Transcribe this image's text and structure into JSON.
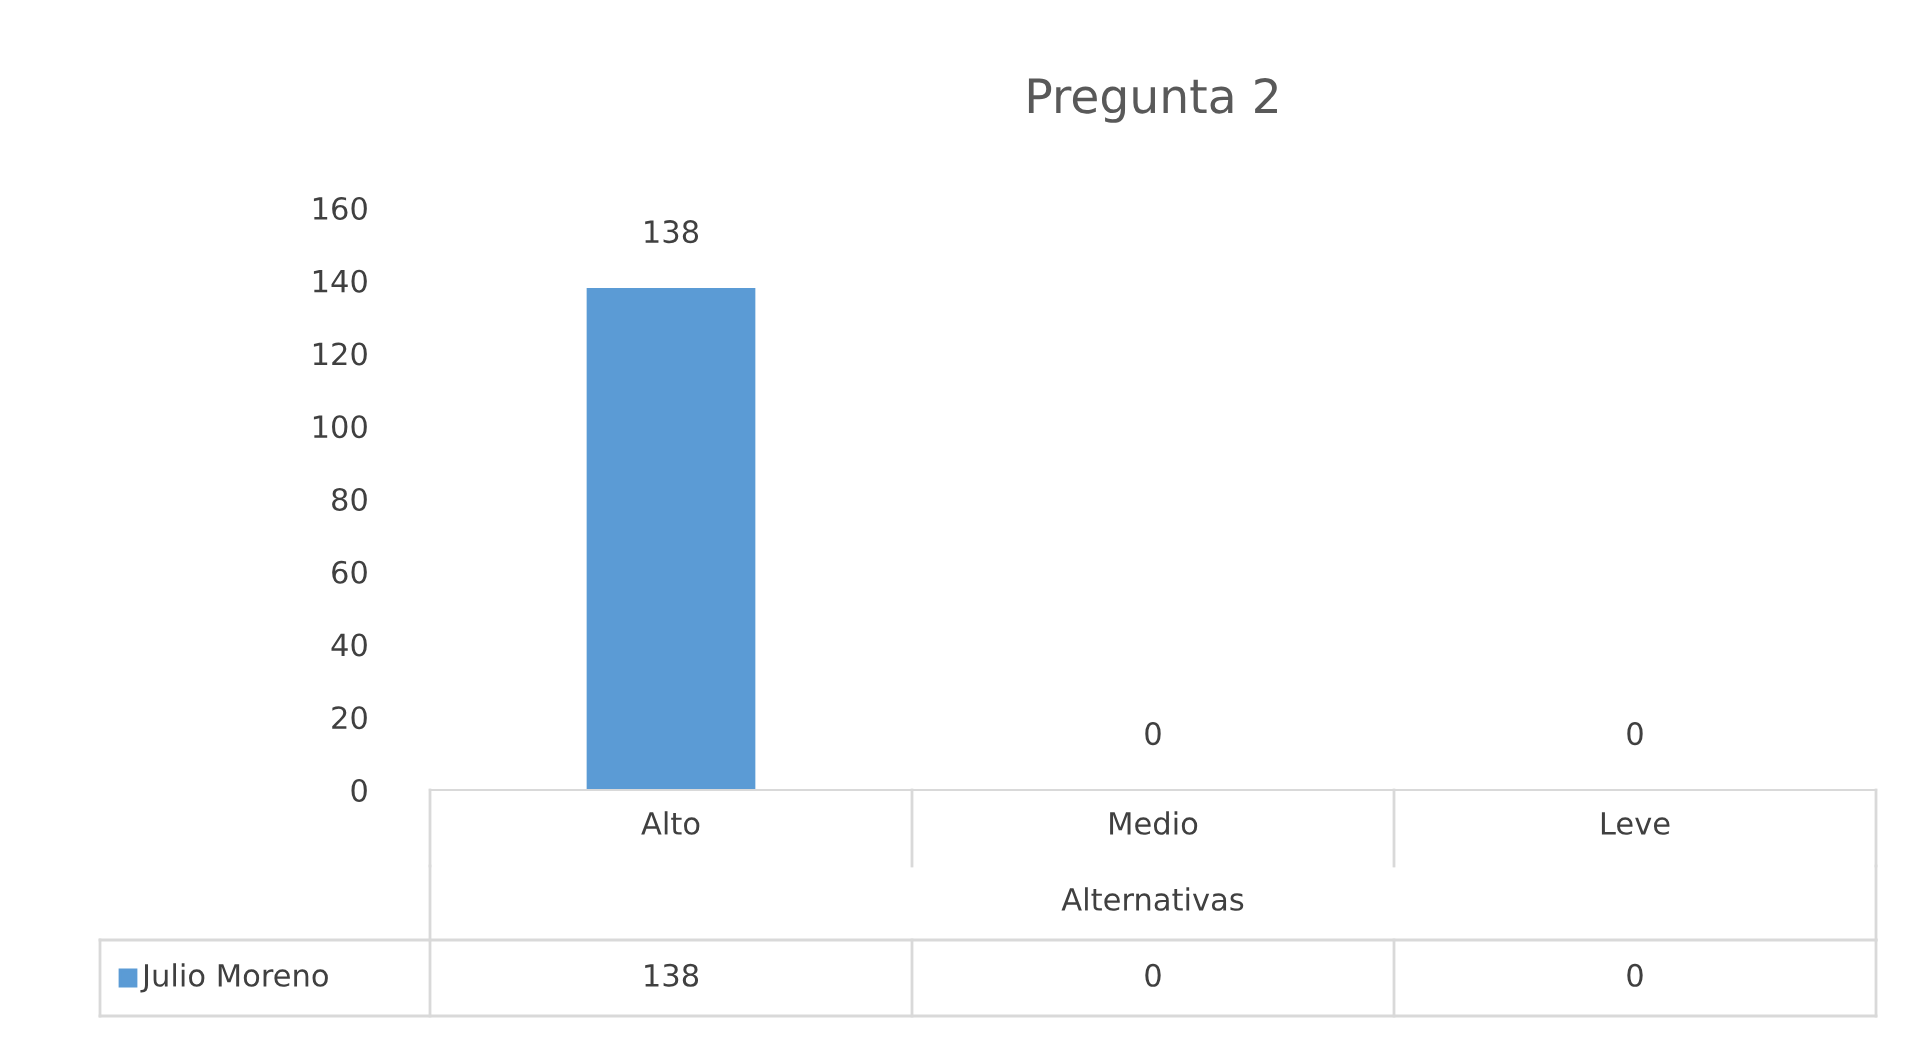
{
  "chart_data": {
    "type": "bar",
    "title": "Pregunta 2",
    "xlabel": "Alternativas",
    "categories": [
      "Alto",
      "Medio",
      "Leve"
    ],
    "series": [
      {
        "name": "Julio Moreno",
        "color": "#5b9bd5",
        "values": [
          138,
          0,
          0
        ],
        "value_labels": [
          "138",
          "0",
          "0"
        ]
      }
    ],
    "ylim": [
      0,
      160
    ],
    "yticks": [
      0,
      20,
      40,
      60,
      80,
      100,
      120,
      140,
      160
    ],
    "annotations": [
      "138",
      "0",
      "0"
    ],
    "data_labels": true,
    "grid": false,
    "legend": "bottom"
  }
}
